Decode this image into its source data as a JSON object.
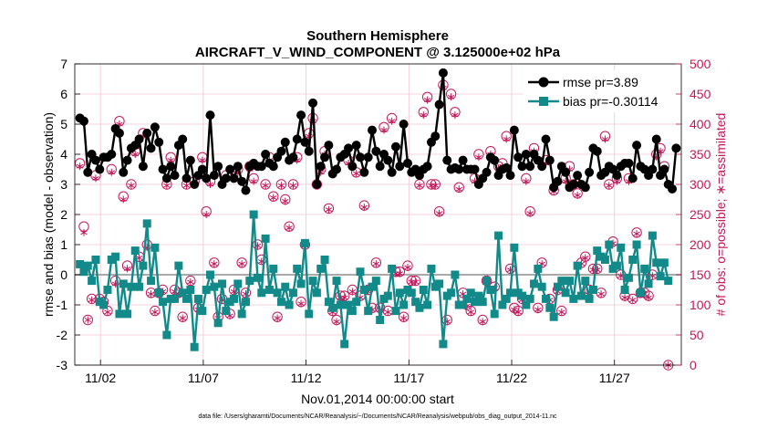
{
  "chart_data": {
    "type": "line",
    "title": "Southern Hemisphere",
    "subtitle": "AIRCRAFT_V_WIND_COMPONENT @ 3.125000e+02 hPa",
    "xlabel": "Nov.01,2014 00:00:00 start",
    "ylabel_left": "rmse and bias (model - observation)",
    "ylabel_right": "# of obs: o=possible; ∗=assimilated",
    "footnote": "data file: /Users/gharamti/Documents/NCAR/Reanalysis/~/Documents/NCAR/Reanalysis/webpub/obs_diag_output_2014-11.nc",
    "x_ticks": [
      "11/02",
      "11/07",
      "11/12",
      "11/17",
      "11/22",
      "11/27"
    ],
    "x_tick_days": [
      2,
      7,
      12,
      17,
      22,
      27
    ],
    "xlim": [
      0.75,
      30.25
    ],
    "ylim_left": [
      -3,
      7
    ],
    "yticks_left": [
      -3,
      -2,
      -1,
      0,
      1,
      2,
      3,
      4,
      5,
      6,
      7
    ],
    "ylim_right": [
      0,
      500
    ],
    "yticks_right": [
      0,
      50,
      100,
      150,
      200,
      250,
      300,
      350,
      400,
      450,
      500
    ],
    "legend_position": "top-right",
    "grid": true,
    "colors": {
      "rmse": "#000000",
      "bias": "#138a8a",
      "obs": "#c2185b",
      "zero_line": "#aaaaaa",
      "grid": "#f2c4d2"
    },
    "series": [
      {
        "name": "rmse pr=3.89",
        "axis": "left",
        "marker": "circle",
        "values": [
          5.2,
          5.1,
          3.4,
          4.0,
          3.8,
          3.5,
          3.9,
          3.9,
          4.0,
          4.85,
          4.7,
          3.4,
          3.8,
          4.2,
          4.3,
          4.5,
          3.6,
          4.7,
          4.2,
          4.9,
          4.4,
          3.5,
          3.2,
          3.6,
          3.3,
          4.3,
          4.5,
          3.2,
          3.8,
          3.0,
          3.3,
          3.5,
          3.2,
          5.3,
          3.3,
          3.6,
          3.0,
          3.2,
          3.5,
          3.2,
          3.6,
          3.1,
          2.8,
          3.6,
          3.7,
          3.6,
          3.6,
          4.0,
          3.7,
          3.6,
          3.9,
          4.1,
          4.4,
          3.8,
          3.9,
          4.5,
          5.3,
          4.4,
          4.1,
          5.7,
          3.0,
          3.6,
          3.9,
          4.3,
          3.35,
          3.5,
          3.9,
          4.0,
          4.2,
          3.6,
          4.3,
          3.9,
          3.4,
          3.9,
          4.8,
          4.1,
          3.6,
          4.0,
          3.8,
          3.4,
          4.25,
          3.6,
          5.0,
          3.7,
          3.4,
          3.5,
          3.3,
          3.5,
          3.6,
          4.4,
          4.6,
          5.65,
          6.7,
          3.8,
          3.5,
          3.55,
          3.5,
          3.8,
          3.5,
          3.5,
          3.5,
          3.0,
          3.2,
          3.4,
          3.9,
          3.8,
          3.3,
          3.5,
          3.55,
          3.3,
          4.8,
          3.9,
          3.6,
          4.0,
          3.6,
          4.0,
          3.8,
          3.6,
          4.5,
          3.8,
          2.9,
          3.1,
          3.6,
          3.4,
          2.9,
          3.0,
          3.3,
          3.0,
          2.9,
          3.4,
          4.2,
          4.1,
          3.3,
          3.4,
          3.6,
          3.5,
          3.3,
          3.6,
          3.7,
          3.7,
          3.2,
          4.3,
          3.6,
          3.5,
          3.3,
          3.5,
          4.5,
          3.3,
          3.5,
          3.0,
          2.85,
          4.2
        ]
      },
      {
        "name": "bias pr=-0.30114",
        "axis": "left",
        "marker": "square",
        "values": [
          0.35,
          0.1,
          0.3,
          -0.2,
          0.5,
          -0.9,
          -1.0,
          -0.5,
          0.5,
          0.6,
          -1.3,
          -0.3,
          -1.3,
          -0.4,
          0.8,
          -0.4,
          0.3,
          1.7,
          -0.2,
          0.9,
          -0.6,
          -0.9,
          -2.0,
          -0.8,
          -0.8,
          0.3,
          -0.6,
          -0.8,
          -0.5,
          -2.4,
          -0.8,
          -1.2,
          -0.5,
          0.0,
          -0.4,
          -1.6,
          -0.3,
          -1.2,
          -0.9,
          -0.8,
          -0.3,
          -1.3,
          -0.9,
          -0.2,
          2.0,
          -0.1,
          -0.6,
          1.2,
          -0.5,
          0.2,
          -0.6,
          -0.9,
          -0.4,
          -1.0,
          -0.6,
          0.2,
          -0.3,
          1.05,
          -1.3,
          -0.2,
          -0.6,
          0.2,
          0.5,
          -0.9,
          -1.1,
          -0.2,
          -1.0,
          -2.3,
          -1.0,
          -1.2,
          -0.9,
          0.1,
          -0.5,
          -1.2,
          -0.4,
          -0.2,
          -1.5,
          -0.8,
          -0.7,
          0.2,
          -1.2,
          -0.6,
          -1.0,
          -0.5,
          -0.6,
          -0.9,
          -1.1,
          -0.5,
          -1.0,
          0.2,
          -0.4,
          -0.3,
          -2.3,
          -0.7,
          -0.6,
          0.0,
          -1.0,
          -1.0,
          -0.8,
          -0.6,
          -0.9,
          -0.7,
          -0.9,
          -0.2,
          -0.5,
          -1.3,
          1.3,
          -1.0,
          -0.8,
          -0.6,
          0.9,
          -0.6,
          -0.7,
          -1.0,
          -0.8,
          -0.3,
          0.2,
          -0.4,
          -0.8,
          -1.1,
          -1.4,
          -0.4,
          -0.2,
          -0.6,
          -0.2,
          -0.8,
          0.3,
          -0.7,
          -0.2,
          -0.8,
          -0.5,
          0.8,
          0.6,
          0.5,
          1.0,
          0.2,
          0.3,
          0.9,
          -0.5,
          -0.1,
          0.5,
          1.0,
          -0.6,
          0.2,
          -0.3,
          1.3,
          0.4,
          -0.05,
          0.4,
          -0.2
        ]
      },
      {
        "name": "obs possible",
        "axis": "right",
        "marker": "open-circle",
        "values": [
          335,
          230,
          75,
          110,
          315,
          110,
          105,
          90,
          325,
          140,
          405,
          280,
          165,
          300,
          355,
          180,
          385,
          200,
          120,
          90,
          120,
          125,
          300,
          345,
          125,
          120,
          80,
          300,
          140,
          305,
          95,
          345,
          255,
          305,
          170,
          80,
          110,
          315,
          85,
          125,
          325,
          170,
          120,
          330,
          310,
          200,
          175,
          300,
          345,
          280,
          80,
          300,
          275,
          230,
          300,
          345,
          105,
          200,
          385,
          410,
          300,
          325,
          355,
          260,
          90,
          75,
          115,
          115,
          340,
          125,
          320,
          115,
          265,
          125,
          95,
          170,
          95,
          395,
          90,
          410,
          155,
          155,
          80,
          165,
          140,
          140,
          300,
          420,
          445,
          300,
          300,
          255,
          465,
          75,
          450,
          420,
          295,
          120,
          100,
          90,
          310,
          350,
          75,
          140,
          355,
          130,
          330,
          335,
          380,
          160,
          95,
          90,
          110,
          310,
          255,
          360,
          95,
          170,
          340,
          110,
          290,
          125,
          90,
          310,
          330,
          300,
          285,
          170,
          180,
          125,
          160,
          160,
          120,
          380,
          300,
          205,
          310,
          150,
          115,
          310,
          110,
          220,
          120,
          120,
          115,
          150,
          350,
          360,
          330,
          0
        ]
      },
      {
        "name": "obs assimilated",
        "axis": "right",
        "marker": "asterisk",
        "values": [
          330,
          220,
          75,
          108,
          310,
          108,
          100,
          88,
          320,
          135,
          400,
          275,
          160,
          298,
          350,
          178,
          380,
          195,
          118,
          88,
          118,
          122,
          298,
          340,
          122,
          118,
          78,
          298,
          138,
          300,
          92,
          340,
          250,
          300,
          168,
          78,
          108,
          310,
          82,
          122,
          320,
          168,
          118,
          325,
          305,
          198,
          172,
          298,
          340,
          278,
          78,
          298,
          272,
          228,
          298,
          340,
          102,
          198,
          380,
          405,
          298,
          320,
          350,
          258,
          88,
          72,
          112,
          112,
          335,
          122,
          318,
          112,
          262,
          122,
          92,
          168,
          92,
          390,
          88,
          405,
          152,
          152,
          78,
          162,
          138,
          138,
          298,
          415,
          440,
          298,
          298,
          252,
          460,
          72,
          445,
          415,
          292,
          118,
          98,
          88,
          305,
          345,
          72,
          138,
          350,
          128,
          325,
          330,
          375,
          158,
          92,
          88,
          108,
          305,
          252,
          355,
          92,
          168,
          335,
          108,
          288,
          122,
          88,
          305,
          325,
          298,
          282,
          168,
          178,
          122,
          158,
          158,
          118,
          375,
          298,
          202,
          305,
          148,
          112,
          305,
          108,
          218,
          118,
          118,
          112,
          148,
          345,
          355,
          325,
          0
        ]
      }
    ]
  }
}
